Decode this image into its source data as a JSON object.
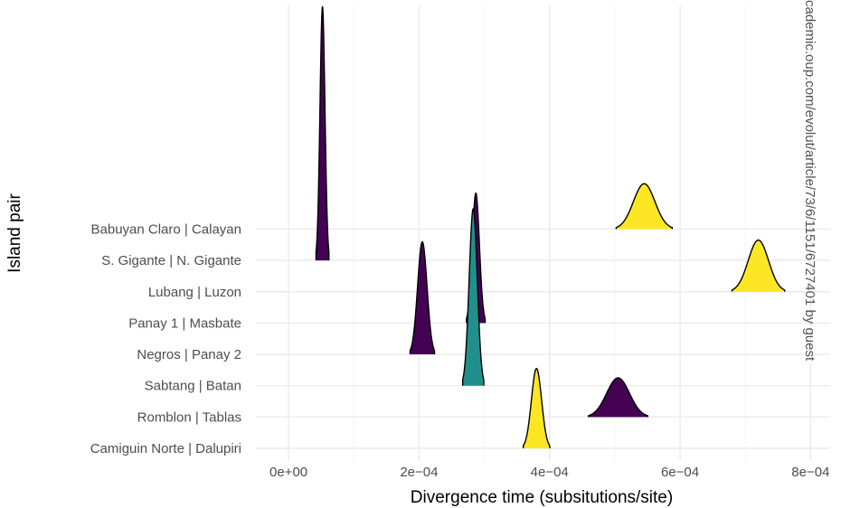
{
  "chart_data": {
    "type": "ridgeline",
    "xlabel": "Divergence time (subsitutions/site)",
    "ylabel": "Island pair",
    "xlim": [
      -5e-05,
      0.00083
    ],
    "x_ticks": [
      0,
      0.0002,
      0.0004,
      0.0006,
      0.0008
    ],
    "x_tick_labels": [
      "0e+00",
      "2e−04",
      "4e−04",
      "6e−04",
      "8e−04"
    ],
    "categories": [
      "Camiguin Norte | Dalupiri",
      "Romblon | Tablas",
      "Sabtang | Batan",
      "Negros | Panay 2",
      "Panay 1 | Masbate",
      "Lubang | Luzon",
      "S. Gigante | N. Gigante",
      "Babuyan Claro | Calayan"
    ],
    "grid": "on",
    "legend": "none",
    "colors": {
      "purple": "#440154",
      "teal": "#21908C",
      "yellow": "#FDE725"
    },
    "series": [
      {
        "category": "Camiguin Norte | Dalupiri",
        "peak": 0.00038,
        "sd": 7.8e-06,
        "height": 2.55,
        "color": "#FDE725"
      },
      {
        "category": "Romblon | Tablas",
        "peak": 0.000505,
        "sd": 1.75e-05,
        "height": 1.25,
        "color": "#440154"
      },
      {
        "category": "Sabtang | Batan",
        "peak": 0.000283,
        "sd": 6.2e-06,
        "height": 5.65,
        "color": "#21908C"
      },
      {
        "category": "Negros | Panay 2",
        "peak": 0.000205,
        "sd": 7.2e-06,
        "height": 3.6,
        "color": "#440154"
      },
      {
        "category": "Panay 1 | Masbate",
        "peak": 0.000287,
        "sd": 5.5e-06,
        "height": 4.15,
        "color": "#440154"
      },
      {
        "category": "Lubang | Luzon",
        "peak": 0.00072,
        "sd": 1.55e-05,
        "height": 1.65,
        "color": "#FDE725"
      },
      {
        "category": "S. Gigante | N. Gigante",
        "peak": 5.2e-05,
        "sd": 3.8e-06,
        "height": 8.1,
        "color": "#440154"
      },
      {
        "category": "Babuyan Claro | Calayan",
        "peak": 0.000545,
        "sd": 1.65e-05,
        "height": 1.45,
        "color": "#FDE725"
      }
    ]
  },
  "watermark": "cademic.oup.com/evolut/article/73/6/1151/6727401 by guest"
}
